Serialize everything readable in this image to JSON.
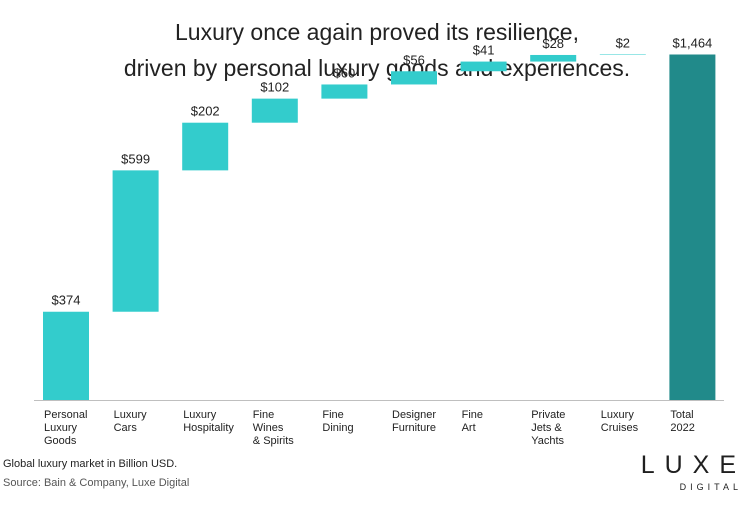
{
  "chart_data": {
    "type": "waterfall",
    "title_lines": [
      "Luxury once again proved its resilience,",
      "driven by personal luxury goods and experiences."
    ],
    "categories": [
      [
        "Personal",
        "Luxury",
        "Goods"
      ],
      [
        "Luxury",
        "Cars"
      ],
      [
        "Luxury",
        "Hospitality"
      ],
      [
        "Fine",
        "Wines",
        "& Spirits"
      ],
      [
        "Fine",
        "Dining"
      ],
      [
        "Designer",
        "Furniture"
      ],
      [
        "Fine",
        "Art"
      ],
      [
        "Private",
        "Jets &",
        "Yachts"
      ],
      [
        "Luxury",
        "Cruises"
      ],
      [
        "Total",
        "2022"
      ]
    ],
    "values": [
      374,
      599,
      202,
      102,
      60,
      56,
      41,
      28,
      2,
      1464
    ],
    "value_labels": [
      "$374",
      "$599",
      "$202",
      "$102",
      "$60",
      "$56",
      "$41",
      "$28",
      "$2",
      "$1,464"
    ],
    "is_total": [
      false,
      false,
      false,
      false,
      false,
      false,
      false,
      false,
      false,
      true
    ],
    "ylim": [
      0,
      1500
    ],
    "xlabel": "",
    "ylabel": "",
    "grid": false,
    "colors": {
      "increment": "#33cccc",
      "total": "#218a8a",
      "text": "#222222"
    }
  },
  "footer": {
    "note": "Global luxury market in Billion USD.",
    "source": "Source: Bain & Company, Luxe Digital"
  },
  "logo": {
    "word": "LUXE",
    "sub": "DIGITAL"
  }
}
